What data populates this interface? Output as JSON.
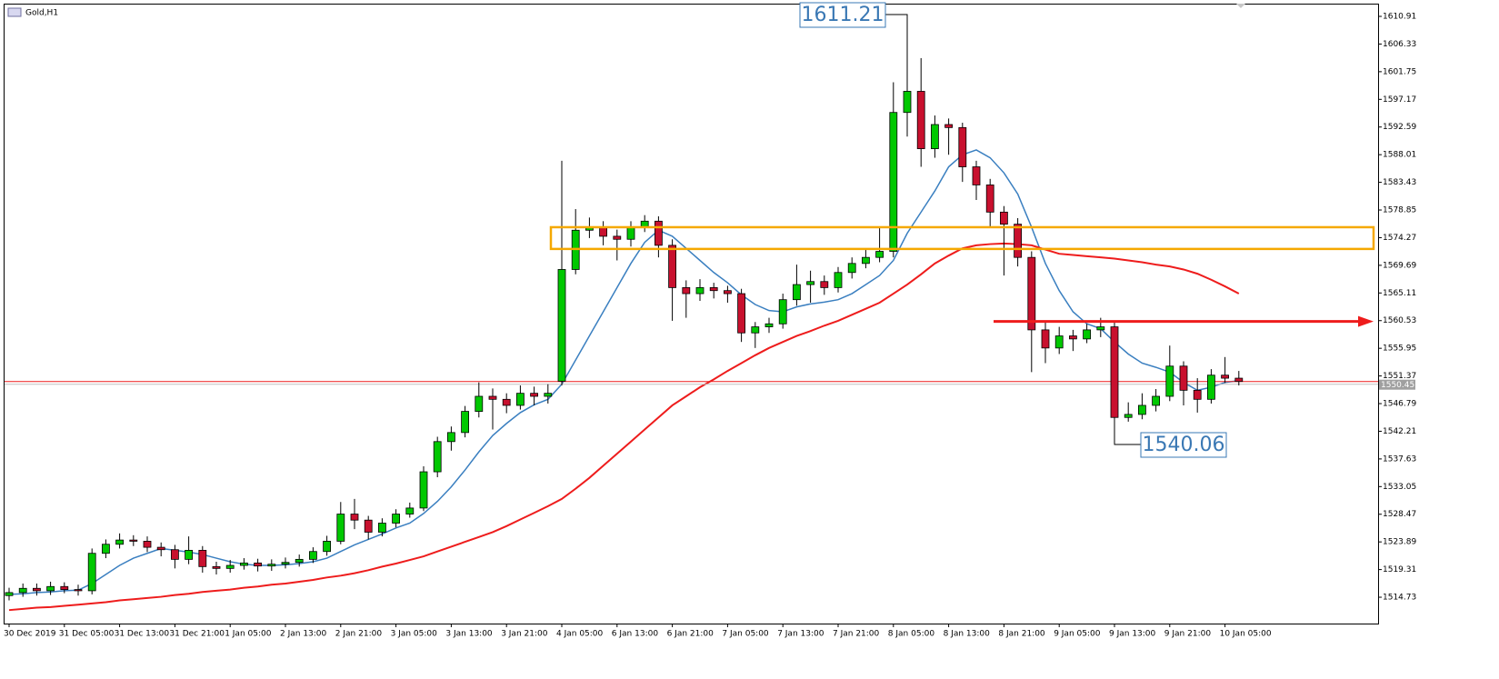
{
  "chart_data": {
    "type": "candlestick",
    "title": "Gold,H1",
    "categories": [
      "30 Dec 2019",
      null,
      null,
      null,
      "31 Dec 05:00",
      null,
      null,
      null,
      "31 Dec 13:00",
      null,
      null,
      null,
      "31 Dec 21:00",
      null,
      null,
      null,
      "1 Jan 05:00",
      null,
      null,
      null,
      "2 Jan 13:00",
      null,
      null,
      null,
      "2 Jan 21:00",
      null,
      null,
      null,
      "3 Jan 05:00",
      null,
      null,
      null,
      "3 Jan 13:00",
      null,
      null,
      null,
      "3 Jan 21:00",
      null,
      null,
      null,
      "4 Jan 05:00",
      null,
      null,
      null,
      "6 Jan 13:00",
      null,
      null,
      null,
      "6 Jan 21:00",
      null,
      null,
      null,
      "7 Jan 05:00",
      null,
      null,
      null,
      "7 Jan 13:00",
      null,
      null,
      null,
      "7 Jan 21:00",
      null,
      null,
      null,
      "8 Jan 05:00",
      null,
      null,
      null,
      "8 Jan 13:00",
      null,
      null,
      null,
      "8 Jan 21:00",
      null,
      null,
      null,
      "9 Jan 05:00",
      null,
      null,
      null,
      "9 Jan 13:00",
      null,
      null,
      null,
      "9 Jan 21:00",
      null,
      null,
      null,
      "10 Jan 05:00",
      null
    ],
    "candles": {
      "up_color": "#00c800",
      "down_color": "#c8102e",
      "open": [
        1515.0,
        1515.5,
        1516.2,
        1515.8,
        1516.5,
        1516.0,
        1515.8,
        1522.0,
        1523.5,
        1524.2,
        1524.0,
        1523.0,
        1522.6,
        1521.0,
        1522.5,
        1519.8,
        1519.5,
        1520.0,
        1520.4,
        1519.9,
        1520.2,
        1520.5,
        1521.0,
        1522.3,
        1524.0,
        1528.5,
        1527.5,
        1525.5,
        1527.0,
        1528.5,
        1529.5,
        1535.5,
        1540.5,
        1542.0,
        1545.5,
        1548.0,
        1547.5,
        1546.5,
        1548.5,
        1548.0,
        1550.5,
        1569.0,
        1575.5,
        1576.0,
        1574.5,
        1574.0,
        1576.0,
        1577.0,
        1573.0,
        1566.0,
        1565.0,
        1566.0,
        1565.5,
        1565.0,
        1558.5,
        1559.5,
        1560.0,
        1564.0,
        1566.5,
        1567.0,
        1566.0,
        1568.5,
        1570.0,
        1571.0,
        1572.0,
        1595.0,
        1598.5,
        1589.0,
        1593.0,
        1592.5,
        1586.0,
        1583.0,
        1578.5,
        1576.5,
        1571.0,
        1559.0,
        1556.0,
        1558.0,
        1557.5,
        1559.0,
        1559.5,
        1544.5,
        1545.0,
        1546.5,
        1548.0,
        1553.0,
        1549.0,
        1547.5,
        1551.5,
        1551.0
      ],
      "high": [
        1516.3,
        1517.0,
        1517.0,
        1517.3,
        1517.2,
        1516.8,
        1522.8,
        1524.3,
        1525.3,
        1525.0,
        1524.8,
        1523.8,
        1523.4,
        1524.8,
        1523.2,
        1520.6,
        1520.9,
        1521.2,
        1521.1,
        1521.0,
        1521.3,
        1521.8,
        1523.0,
        1524.9,
        1530.5,
        1531.0,
        1528.2,
        1527.8,
        1529.3,
        1530.4,
        1536.4,
        1541.3,
        1543.0,
        1546.4,
        1550.3,
        1549.3,
        1548.5,
        1549.8,
        1549.6,
        1550.0,
        1587.0,
        1579.0,
        1577.6,
        1577.0,
        1575.6,
        1577.0,
        1578.0,
        1577.8,
        1574.0,
        1567.2,
        1567.4,
        1566.8,
        1566.3,
        1565.8,
        1560.3,
        1561.0,
        1565.0,
        1569.8,
        1568.8,
        1568.0,
        1569.4,
        1571.0,
        1572.3,
        1576.0,
        1600.0,
        1611.21,
        1604.0,
        1594.5,
        1594.0,
        1593.3,
        1587.0,
        1584.0,
        1579.5,
        1577.5,
        1572.0,
        1560.5,
        1559.5,
        1559.0,
        1560.0,
        1561.0,
        1560.2,
        1547.0,
        1548.5,
        1549.2,
        1556.4,
        1553.8,
        1551.0,
        1552.5,
        1554.5,
        1552.2
      ],
      "low": [
        1514.2,
        1514.8,
        1515.0,
        1515.1,
        1515.4,
        1515.0,
        1515.2,
        1521.2,
        1522.8,
        1523.2,
        1522.2,
        1521.5,
        1519.5,
        1520.2,
        1518.8,
        1518.5,
        1518.8,
        1519.3,
        1519.0,
        1519.1,
        1519.5,
        1519.8,
        1520.4,
        1521.6,
        1523.5,
        1526.0,
        1524.3,
        1524.8,
        1526.3,
        1527.9,
        1529.0,
        1534.6,
        1539.0,
        1541.2,
        1544.5,
        1542.5,
        1545.2,
        1545.8,
        1546.5,
        1546.8,
        1549.8,
        1568.2,
        1574.2,
        1573.0,
        1570.5,
        1572.8,
        1575.2,
        1571.0,
        1560.5,
        1561.0,
        1563.8,
        1564.2,
        1563.5,
        1557.0,
        1556.0,
        1558.5,
        1559.2,
        1563.0,
        1563.5,
        1564.8,
        1565.2,
        1567.5,
        1569.2,
        1570.2,
        1571.0,
        1591.0,
        1586.0,
        1587.5,
        1588.0,
        1583.5,
        1580.5,
        1576.0,
        1568.0,
        1569.5,
        1552.0,
        1553.5,
        1555.0,
        1555.5,
        1556.8,
        1557.8,
        1540.06,
        1543.8,
        1544.2,
        1545.5,
        1547.2,
        1546.5,
        1545.3,
        1546.8,
        1550.2,
        1549.8
      ],
      "close": [
        1515.5,
        1516.2,
        1515.8,
        1516.5,
        1516.0,
        1515.8,
        1522.0,
        1523.5,
        1524.2,
        1524.0,
        1523.0,
        1522.6,
        1521.0,
        1522.5,
        1519.8,
        1519.5,
        1520.0,
        1520.4,
        1519.9,
        1520.2,
        1520.5,
        1521.0,
        1522.3,
        1524.0,
        1528.5,
        1527.5,
        1525.5,
        1527.0,
        1528.5,
        1529.5,
        1535.5,
        1540.5,
        1542.0,
        1545.5,
        1548.0,
        1547.5,
        1546.5,
        1548.5,
        1548.0,
        1548.5,
        1569.0,
        1575.5,
        1576.0,
        1574.5,
        1574.0,
        1576.0,
        1577.0,
        1573.0,
        1566.0,
        1565.0,
        1566.0,
        1565.5,
        1565.0,
        1558.5,
        1559.5,
        1560.0,
        1564.0,
        1566.5,
        1567.0,
        1566.0,
        1568.5,
        1570.0,
        1571.0,
        1572.0,
        1595.0,
        1598.5,
        1589.0,
        1593.0,
        1592.5,
        1586.0,
        1583.0,
        1578.5,
        1576.5,
        1571.0,
        1559.0,
        1556.0,
        1558.0,
        1557.5,
        1559.0,
        1559.5,
        1544.5,
        1545.0,
        1546.5,
        1548.0,
        1553.0,
        1549.0,
        1547.5,
        1551.5,
        1551.0,
        1550.45
      ]
    },
    "series": [
      {
        "color": "#3a7fc0",
        "values": [
          1515.2,
          1515.3,
          1515.5,
          1515.6,
          1515.8,
          1515.9,
          1517.0,
          1518.5,
          1520.0,
          1521.2,
          1522.0,
          1522.8,
          1522.5,
          1522.2,
          1521.8,
          1521.2,
          1520.6,
          1520.2,
          1520.0,
          1520.0,
          1520.1,
          1520.3,
          1520.6,
          1521.2,
          1522.3,
          1523.4,
          1524.3,
          1525.2,
          1526.2,
          1527.0,
          1528.6,
          1530.6,
          1533.0,
          1535.8,
          1538.8,
          1541.5,
          1543.5,
          1545.3,
          1546.6,
          1547.5,
          1550.0,
          1554.0,
          1558.0,
          1562.0,
          1566.0,
          1570.0,
          1573.5,
          1575.5,
          1574.5,
          1572.5,
          1570.5,
          1568.5,
          1566.8,
          1564.8,
          1563.2,
          1562.2,
          1562.0,
          1562.8,
          1563.3,
          1563.6,
          1564.0,
          1565.0,
          1566.5,
          1568.0,
          1570.5,
          1575.0,
          1578.5,
          1582.0,
          1586.0,
          1588.0,
          1588.8,
          1587.5,
          1585.0,
          1581.5,
          1576.0,
          1570.0,
          1565.5,
          1562.0,
          1560.0,
          1559.2,
          1557.0,
          1555.0,
          1553.5,
          1552.8,
          1552.0,
          1550.3,
          1549.0,
          1549.5,
          1550.3,
          1550.6
        ]
      },
      {
        "color": "#ee1c1c",
        "values": [
          1512.6,
          1512.8,
          1513.0,
          1513.1,
          1513.3,
          1513.5,
          1513.7,
          1513.9,
          1514.2,
          1514.4,
          1514.6,
          1514.8,
          1515.1,
          1515.3,
          1515.6,
          1515.8,
          1516.0,
          1516.3,
          1516.5,
          1516.8,
          1517.0,
          1517.3,
          1517.6,
          1518.0,
          1518.3,
          1518.7,
          1519.2,
          1519.8,
          1520.3,
          1520.9,
          1521.5,
          1522.3,
          1523.1,
          1523.9,
          1524.7,
          1525.5,
          1526.5,
          1527.6,
          1528.7,
          1529.8,
          1531.0,
          1532.7,
          1534.5,
          1536.5,
          1538.5,
          1540.5,
          1542.5,
          1544.5,
          1546.5,
          1548.0,
          1549.5,
          1550.8,
          1552.2,
          1553.5,
          1554.8,
          1556.0,
          1557.0,
          1558.0,
          1558.8,
          1559.7,
          1560.5,
          1561.5,
          1562.5,
          1563.5,
          1565.0,
          1566.5,
          1568.2,
          1570.0,
          1571.3,
          1572.5,
          1573.0,
          1573.2,
          1573.3,
          1573.2,
          1573.0,
          1572.3,
          1571.6,
          1571.4,
          1571.2,
          1571.0,
          1570.8,
          1570.5,
          1570.2,
          1569.8,
          1569.5,
          1569.0,
          1568.3,
          1567.3,
          1566.2,
          1565.0
        ]
      }
    ],
    "zone": {
      "low": 1572.4,
      "high": 1576.0,
      "color": "#f5a800"
    },
    "arrow": {
      "value": 1560.4,
      "color": "#ee1c1c"
    },
    "annotation_color": "#3a78b4",
    "ylim": [
      1510.37,
      1613.02
    ],
    "yticks": [
      1610.91,
      1606.33,
      1601.75,
      1597.17,
      1592.59,
      1588.01,
      1583.43,
      1578.85,
      1574.27,
      1569.69,
      1565.11,
      1560.53,
      1555.95,
      1551.37,
      1546.79,
      1542.21,
      1537.63,
      1533.05,
      1528.47,
      1523.89,
      1519.31,
      1514.73
    ]
  }
}
